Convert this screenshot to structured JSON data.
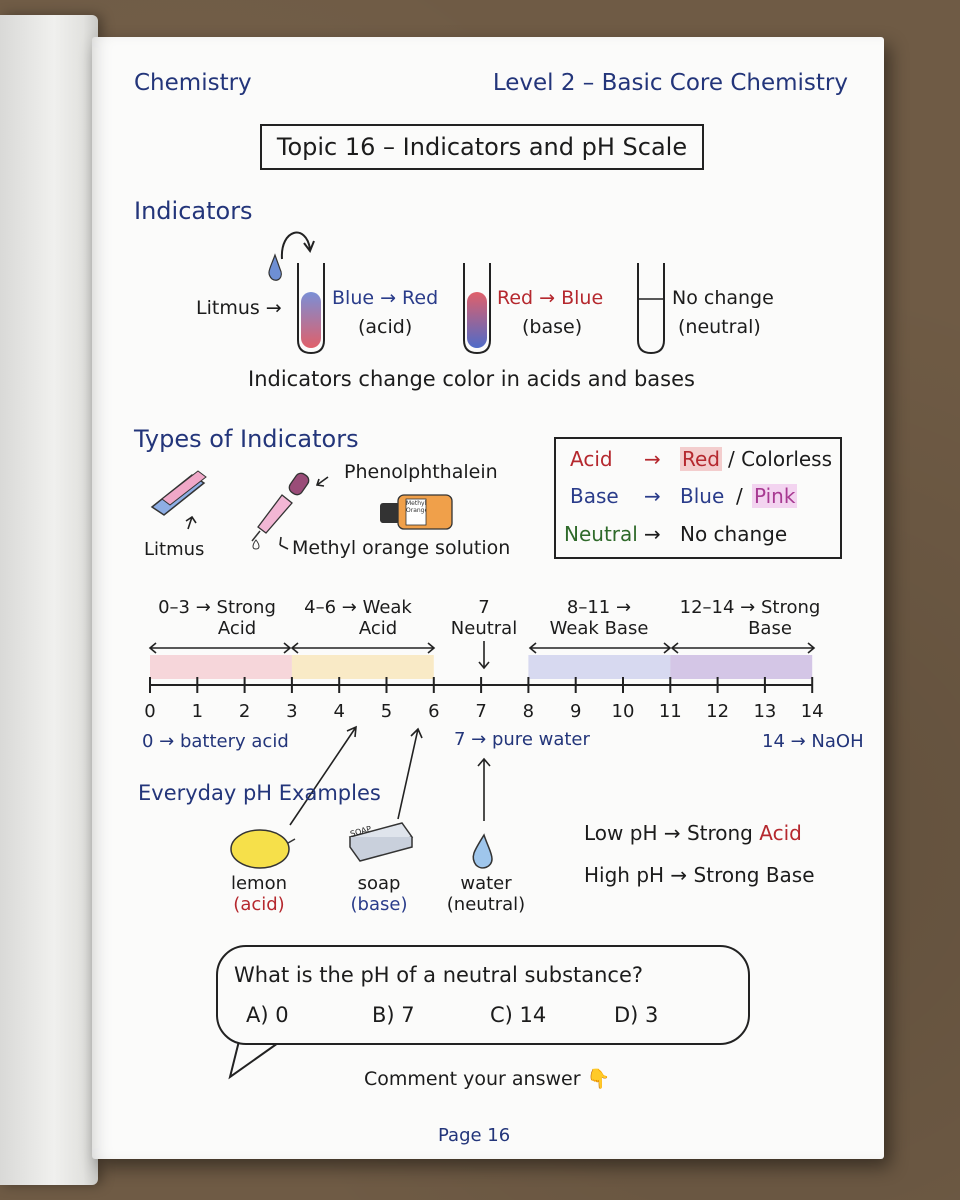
{
  "header": {
    "subject": "Chemistry",
    "level": "Level 2 – Basic Core Chemistry"
  },
  "topic_title": "Topic 16 – Indicators and pH Scale",
  "indicators": {
    "section_title": "Indicators",
    "litmus_label": "Litmus →",
    "tube1_change": "Blue → Red",
    "tube1_cond": "(acid)",
    "tube2_change": "Red → Blue",
    "tube2_cond": "(base)",
    "tube3_change": "No change",
    "tube3_cond": "(neutral)",
    "caption": "Indicators change color in acids and bases"
  },
  "types": {
    "section_title": "Types of Indicators",
    "phenolphthalein": "Phenolphthalein",
    "litmus": "Litmus",
    "methyl_orange": "Methyl orange solution",
    "bottle_label": "Methyl Orange"
  },
  "legend": {
    "acid_label": "Acid",
    "acid_arrow": "→",
    "acid_red": "Red",
    "acid_rest": "/ Colorless",
    "base_label": "Base",
    "base_arrow": "→",
    "base_blue": "Blue",
    "base_slash": "/",
    "base_pink": "Pink",
    "neutral_label": "Neutral",
    "neutral_arrow": "→",
    "neutral_value": "No change"
  },
  "ph_scale": {
    "ranges": [
      {
        "line1": "0–3 → Strong",
        "line2": "Acid"
      },
      {
        "line1": "4–6 → Weak",
        "line2": "Acid"
      },
      {
        "line1": "7",
        "line2": "Neutral"
      },
      {
        "line1": "8–11 →",
        "line2": "Weak Base"
      },
      {
        "line1": "12–14 → Strong",
        "line2": "Base"
      }
    ],
    "ticks": [
      "0",
      "1",
      "2",
      "3",
      "4",
      "5",
      "6",
      "7",
      "8",
      "9",
      "10",
      "11",
      "12",
      "13",
      "14"
    ],
    "band_colors": [
      "#f2b8bf",
      "#f7dc9a",
      "#b9bee8",
      "#b59ad6"
    ],
    "note_left": "0 → battery acid",
    "note_mid": "7 → pure water",
    "note_right": "14 → NaOH"
  },
  "everyday": {
    "section_title": "Everyday pH Examples",
    "items": [
      {
        "name": "lemon",
        "type": "(acid)"
      },
      {
        "name": "soap",
        "type": "(base)"
      },
      {
        "name": "water",
        "type": "(neutral)"
      }
    ],
    "soap_label": "SOAP",
    "low": "Low pH → Strong",
    "low_word": "Acid",
    "high": "High pH → Strong Base"
  },
  "quiz": {
    "question": "What is the pH of a neutral substance?",
    "options": [
      "A) 0",
      "B) 7",
      "C) 14",
      "D) 3"
    ],
    "prompt": "Comment your answer 👇"
  },
  "footer": {
    "page": "Page 16"
  }
}
